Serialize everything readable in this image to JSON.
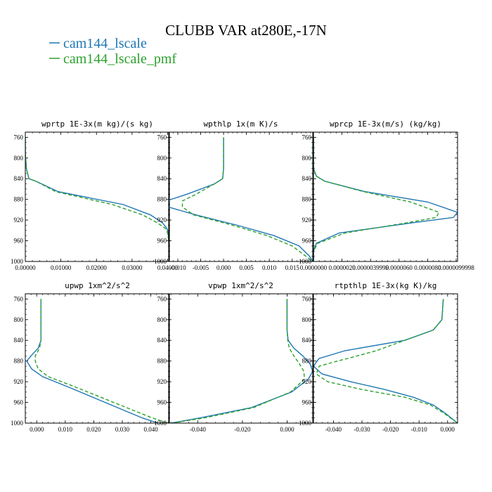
{
  "figure": {
    "title": "CLUBB VAR at280E,-17N",
    "legend": [
      {
        "label": "cam144_lscale",
        "color": "#1f77b4",
        "dash": "solid"
      },
      {
        "label": "cam144_lscale_pmf",
        "color": "#2ca02c",
        "dash": "dashed"
      }
    ]
  },
  "chart_data": [
    {
      "type": "line",
      "title": "wprtp  1E-3x(m kg)/(s kg)",
      "xlim": [
        0,
        0.0405
      ],
      "ylim": [
        1000,
        750
      ],
      "xticks": [
        0,
        0.01,
        0.02,
        0.03,
        0.04
      ],
      "xtick_labels": [
        "0.00000",
        "0.01000",
        "0.02000",
        "0.03000",
        "0.04000"
      ],
      "yticks": [
        760,
        800,
        840,
        880,
        920,
        960,
        1000
      ],
      "y": [
        760,
        790,
        820,
        840,
        845,
        865,
        890,
        910,
        925,
        935,
        940,
        950,
        960,
        980,
        1000
      ],
      "series": [
        {
          "name": "cam144_lscale",
          "x": [
            0,
            0,
            0.0003,
            0.001,
            0.003,
            0.0092,
            0.0275,
            0.0352,
            0.0385,
            0.0397,
            0.04,
            0.0402,
            0.0403,
            0.0404,
            0.0405
          ]
        },
        {
          "name": "cam144_lscale_pmf",
          "x": [
            0,
            0,
            0.0003,
            0.001,
            0.003,
            0.0085,
            0.0245,
            0.033,
            0.037,
            0.0392,
            0.0398,
            0.0401,
            0.0403,
            0.0404,
            0.0405
          ]
        }
      ]
    },
    {
      "type": "line",
      "title": "wpthlp  1x(m K)/s",
      "xlim": [
        -0.012,
        0.0195
      ],
      "ylim": [
        1000,
        750
      ],
      "xticks": [
        -0.01,
        -0.005,
        0,
        0.005,
        0.01,
        0.015
      ],
      "xtick_labels": [
        "-0.010",
        "-0.005",
        "0.000",
        "0.005",
        "0.010",
        "0.015"
      ],
      "yticks": [
        760,
        800,
        840,
        880,
        920,
        960,
        1000
      ],
      "y": [
        760,
        820,
        840,
        850,
        870,
        883,
        895,
        910,
        930,
        950,
        970,
        990,
        1000
      ],
      "series": [
        {
          "name": "cam144_lscale",
          "x": [
            0,
            0,
            -0.0002,
            -0.002,
            -0.008,
            -0.0125,
            -0.012,
            -0.006,
            0.003,
            0.011,
            0.0165,
            0.0188,
            0.0195
          ]
        },
        {
          "name": "cam144_lscale_pmf",
          "x": [
            0,
            0,
            -0.0002,
            -0.002,
            -0.006,
            -0.009,
            -0.009,
            -0.0065,
            0.002,
            0.0095,
            0.015,
            0.018,
            0.0195
          ]
        }
      ]
    },
    {
      "type": "line",
      "title": "wprcp  1E-3x(m/s) (kg/kg)",
      "xlim": [
        0,
        1.01e-05
      ],
      "ylim": [
        1000,
        750
      ],
      "xticks": [
        0,
        2e-06,
        4e-06,
        6e-06,
        8e-06,
        1e-05
      ],
      "xtick_labels": [
        "0.0000000",
        "0.0000020",
        "0.0000039999",
        "0.0000060",
        "0.0000080",
        "0.0000099998"
      ],
      "yticks": [
        760,
        800,
        840,
        880,
        920,
        960,
        1000
      ],
      "y": [
        760,
        820,
        835,
        845,
        865,
        885,
        905,
        915,
        925,
        945,
        965,
        980,
        1000
      ],
      "series": [
        {
          "name": "cam144_lscale",
          "x": [
            0,
            0,
            2e-07,
            8e-07,
            3.6e-06,
            8e-06,
            1.01e-05,
            9.8e-06,
            7e-06,
            1.8e-06,
            2e-07,
            0,
            0
          ]
        },
        {
          "name": "cam144_lscale_pmf",
          "x": [
            0,
            0,
            2e-07,
            8e-07,
            3.5e-06,
            6.8e-06,
            8.8e-06,
            8.6e-06,
            6.6e-06,
            2.2e-06,
            3e-07,
            0,
            0
          ]
        }
      ]
    },
    {
      "type": "line",
      "title": "upwp  1xm^2/s^2",
      "xlim": [
        -0.004,
        0.0465
      ],
      "ylim": [
        1000,
        750
      ],
      "xticks": [
        0,
        0.01,
        0.02,
        0.03,
        0.04
      ],
      "xtick_labels": [
        "0.000",
        "0.010",
        "0.020",
        "0.030",
        "0.040"
      ],
      "yticks": [
        760,
        800,
        840,
        880,
        920,
        960,
        1000
      ],
      "y": [
        760,
        840,
        855,
        870,
        880,
        895,
        910,
        930,
        960,
        990,
        1000
      ],
      "series": [
        {
          "name": "cam144_lscale",
          "x": [
            0.0015,
            0.0015,
            0.0005,
            -0.002,
            -0.0035,
            -0.0018,
            0.002,
            0.011,
            0.024,
            0.037,
            0.0425
          ]
        },
        {
          "name": "cam144_lscale_pmf",
          "x": [
            0.0015,
            0.0015,
            0.001,
            -0.0005,
            -0.0005,
            0.0005,
            0.004,
            0.0135,
            0.027,
            0.0405,
            0.046
          ]
        }
      ]
    },
    {
      "type": "line",
      "title": "vpwp  1xm^2/s^2",
      "xlim": [
        -0.053,
        0.0115
      ],
      "ylim": [
        1000,
        750
      ],
      "xticks": [
        -0.04,
        -0.02,
        0
      ],
      "xtick_labels": [
        "-0.040",
        "-0.020",
        "0.000"
      ],
      "yticks": [
        760,
        800,
        840,
        880,
        920,
        960,
        1000
      ],
      "y": [
        760,
        820,
        840,
        855,
        870,
        885,
        900,
        915,
        940,
        970,
        990,
        1000
      ],
      "series": [
        {
          "name": "cam144_lscale",
          "x": [
            0,
            0,
            0.0005,
            0.003,
            0.007,
            0.0102,
            0.0115,
            0.0095,
            0.002,
            -0.016,
            -0.039,
            -0.052
          ]
        },
        {
          "name": "cam144_lscale_pmf",
          "x": [
            0,
            0,
            0.0003,
            0.001,
            0.003,
            0.0055,
            0.0075,
            0.0078,
            0.0015,
            -0.015,
            -0.037,
            -0.052
          ]
        }
      ]
    },
    {
      "type": "line",
      "title": "rtpthlp  1E-3x(kg K)/kg",
      "xlim": [
        -0.047,
        0.0035
      ],
      "ylim": [
        1000,
        750
      ],
      "xticks": [
        -0.04,
        -0.03,
        -0.02,
        -0.01,
        0
      ],
      "xtick_labels": [
        "-0.040",
        "-0.030",
        "-0.020",
        "-0.010",
        "0.000"
      ],
      "yticks": [
        760,
        800,
        840,
        880,
        920,
        960,
        1000
      ],
      "y": [
        760,
        800,
        820,
        840,
        860,
        875,
        882,
        890,
        905,
        920,
        935,
        950,
        965,
        980,
        1000
      ],
      "series": [
        {
          "name": "cam144_lscale",
          "x": [
            -0.0015,
            -0.002,
            -0.005,
            -0.015,
            -0.036,
            -0.045,
            -0.046,
            -0.047,
            -0.044,
            -0.034,
            -0.022,
            -0.012,
            -0.005,
            -0.001,
            0.0035
          ]
        },
        {
          "name": "cam144_lscale_pmf",
          "x": [
            -0.0015,
            -0.002,
            -0.005,
            -0.015,
            -0.025,
            -0.035,
            -0.04,
            -0.045,
            -0.046,
            -0.042,
            -0.03,
            -0.015,
            -0.006,
            -0.0015,
            0.0035
          ]
        }
      ]
    }
  ]
}
